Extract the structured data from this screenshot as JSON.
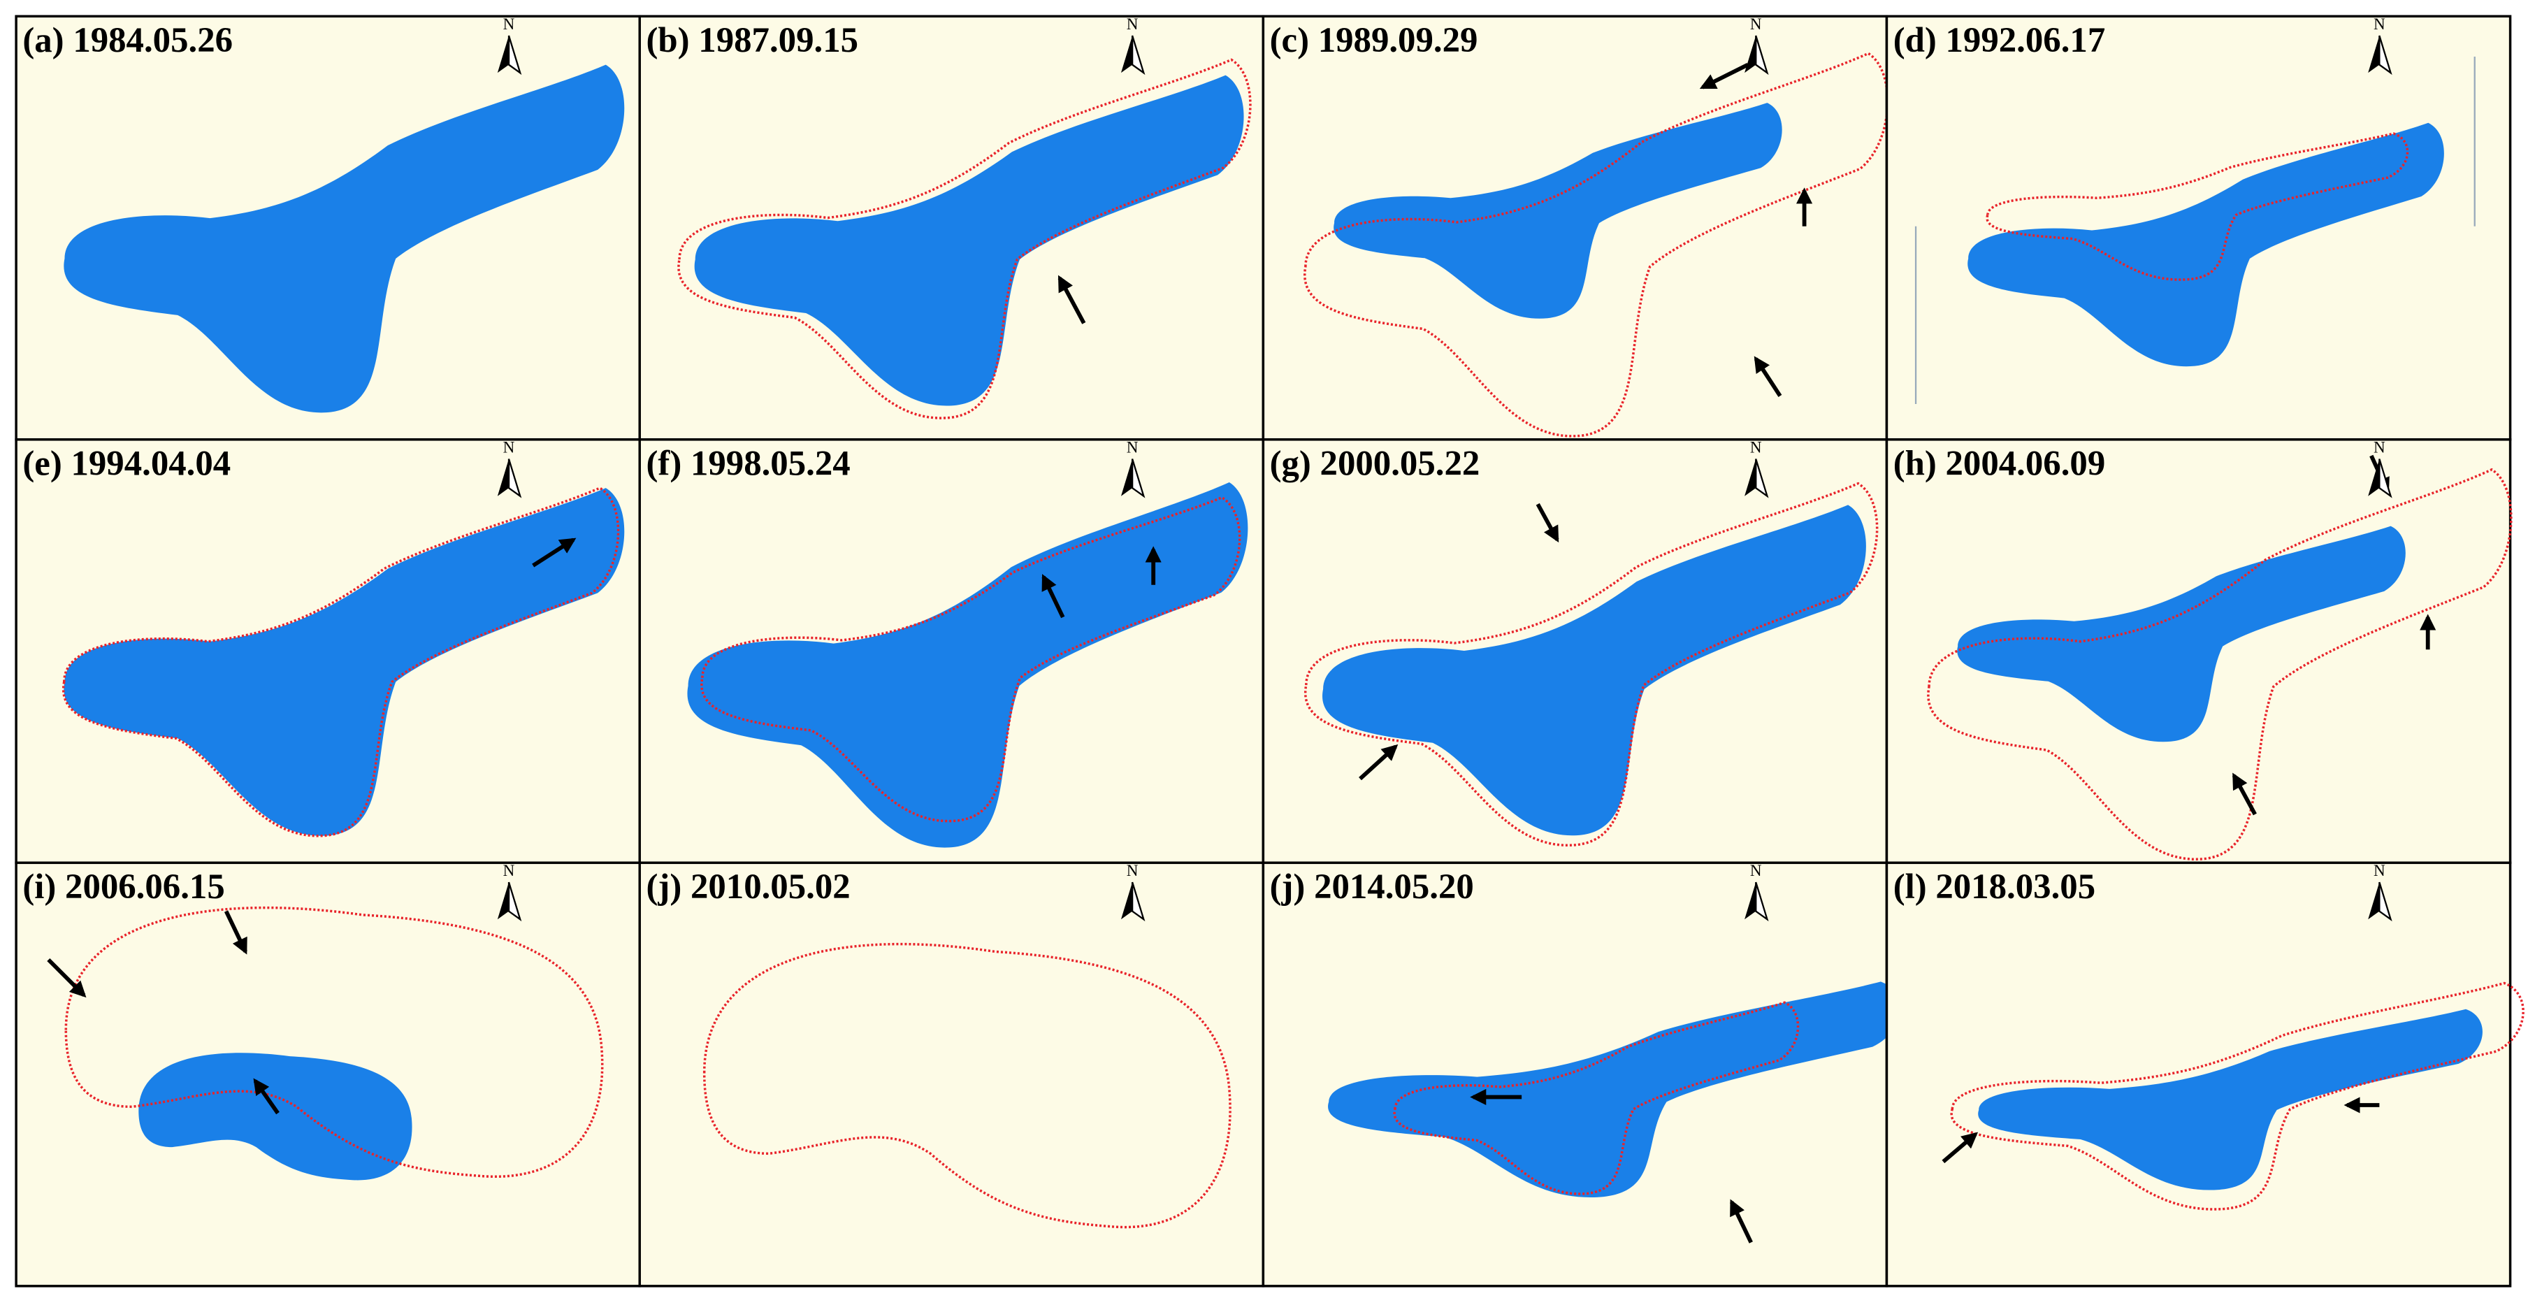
{
  "north_label": "N",
  "panels": [
    {
      "label": "(a) 1984.05.26"
    },
    {
      "label": "(b) 1987.09.15"
    },
    {
      "label": "(c) 1989.09.29"
    },
    {
      "label": "(d) 1992.06.17"
    },
    {
      "label": "(e) 1994.04.04"
    },
    {
      "label": "(f) 1998.05.24"
    },
    {
      "label": "(g) 2000.05.22"
    },
    {
      "label": "(h) 2004.06.09"
    },
    {
      "label": "(i) 2006.06.15"
    },
    {
      "label": "(j) 2010.05.02"
    },
    {
      "label": "(j) 2014.05.20"
    },
    {
      "label": "(l) 2018.03.05"
    }
  ]
}
